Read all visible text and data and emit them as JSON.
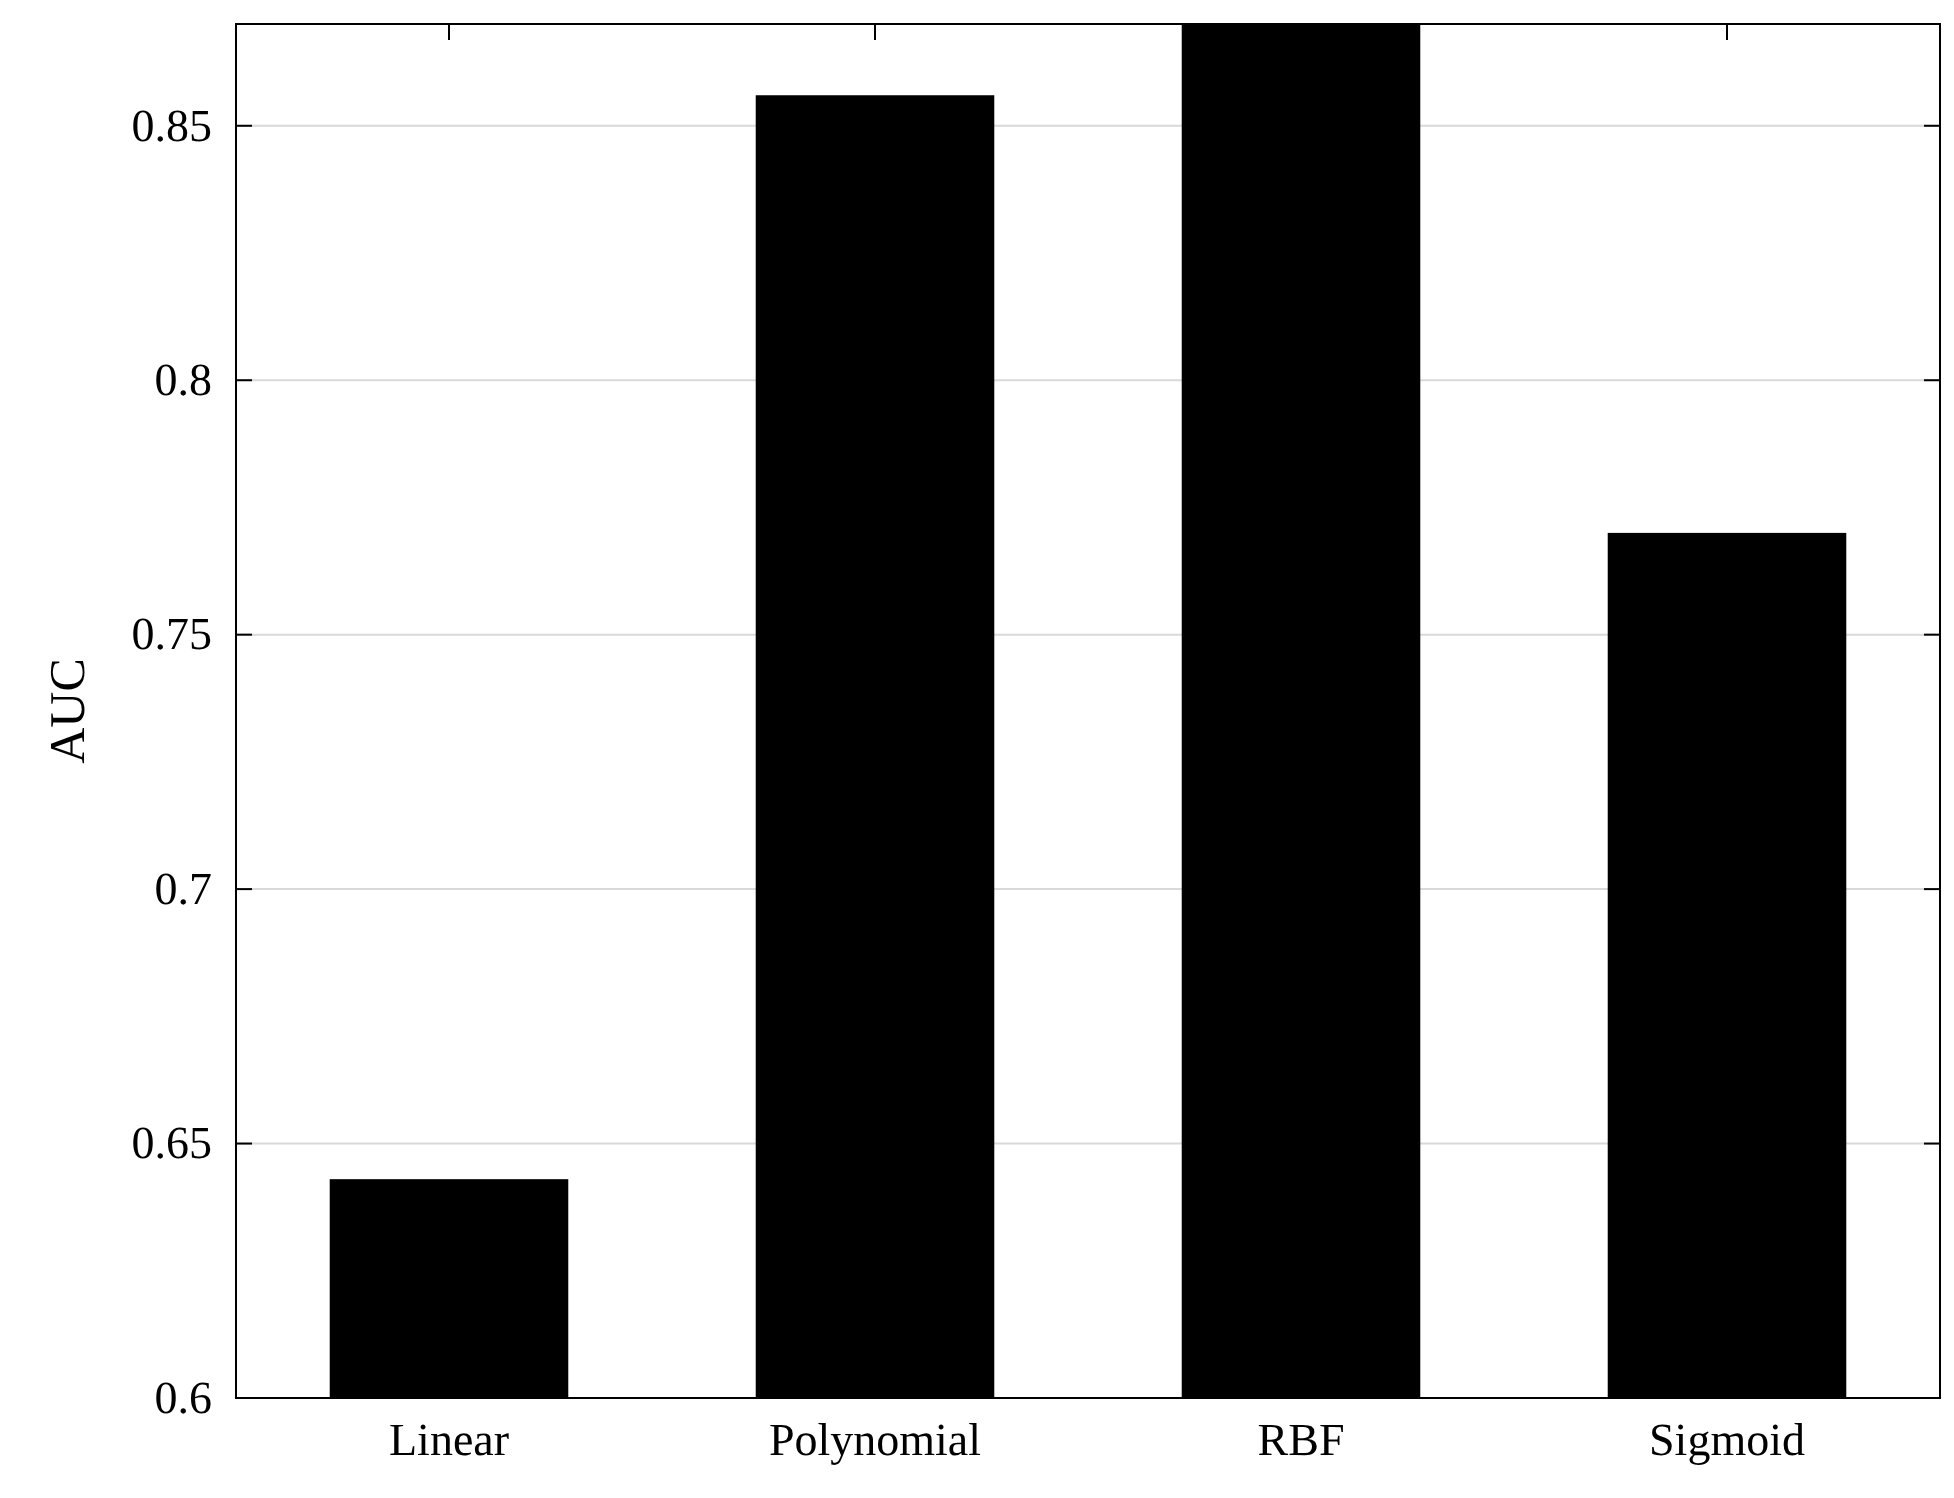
{
  "chart_data": {
    "type": "bar",
    "ylabel": "AUC",
    "categories": [
      "Linear",
      "Polynomial",
      "RBF",
      "Sigmoid"
    ],
    "values": [
      0.643,
      0.856,
      0.87,
      0.77
    ],
    "color": "#000000",
    "ylim": [
      0.6,
      0.87
    ],
    "yticks": [
      0.6,
      0.65,
      0.7,
      0.75,
      0.8,
      0.85
    ],
    "grid": "y"
  }
}
